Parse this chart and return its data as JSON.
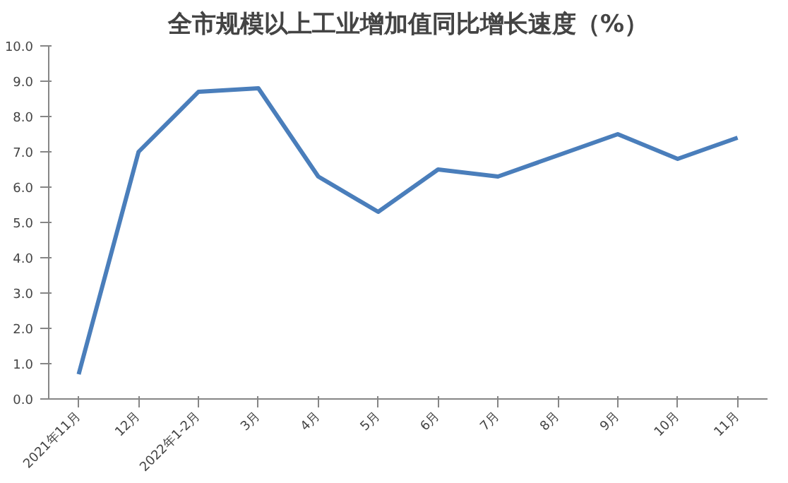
{
  "chart_data": {
    "type": "line",
    "title": "全市规模以上工业增加值同比增长速度（%）",
    "categories": [
      "2021年11月",
      "12月",
      "2022年1-2月",
      "3月",
      "4月",
      "5月",
      "6月",
      "7月",
      "8月",
      "9月",
      "10月",
      "11月"
    ],
    "series": [
      {
        "color": "#4a7ebb",
        "values": [
          0.7,
          7.0,
          8.7,
          8.8,
          6.3,
          5.3,
          6.5,
          6.3,
          6.9,
          7.5,
          6.8,
          7.4
        ]
      }
    ],
    "ylim": [
      0,
      10
    ],
    "yticks": [
      {
        "value": 0,
        "label": "0.0"
      },
      {
        "value": 1,
        "label": "1.0"
      },
      {
        "value": 2,
        "label": "2.0"
      },
      {
        "value": 3,
        "label": "3.0"
      },
      {
        "value": 4,
        "label": "4.0"
      },
      {
        "value": 5,
        "label": "5.0"
      },
      {
        "value": 6,
        "label": "6.0"
      },
      {
        "value": 7,
        "label": "7.0"
      },
      {
        "value": 8,
        "label": "8.0"
      },
      {
        "value": 9,
        "label": "9.0"
      },
      {
        "value": 10,
        "label": "10.0"
      }
    ],
    "grid": false,
    "marker": "none",
    "line_style": "solid"
  }
}
